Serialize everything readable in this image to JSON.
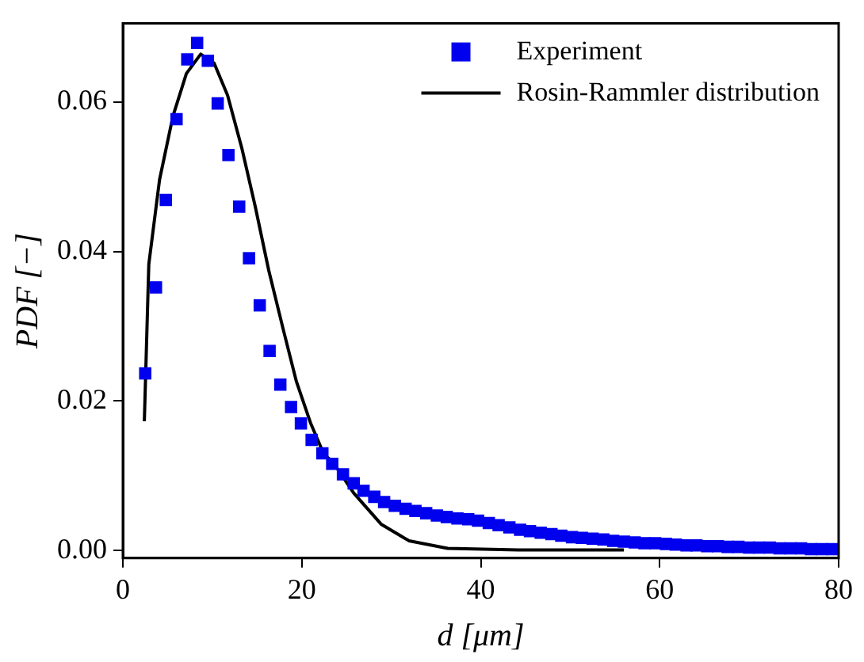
{
  "chart_data": {
    "type": "scatter",
    "xlabel": "d [μm]",
    "ylabel": "PDF [−]",
    "xlim": [
      0,
      80
    ],
    "ylim": [
      -0.001,
      0.0705
    ],
    "xticks": [
      0,
      20,
      40,
      60,
      80
    ],
    "yticks": [
      {
        "value": 0,
        "label": "0.00"
      },
      {
        "value": 0.02,
        "label": "0.02"
      },
      {
        "value": 0.04,
        "label": "0.04"
      },
      {
        "value": 0.06,
        "label": "0.06"
      }
    ],
    "grid": false,
    "legend": "top right",
    "marker": "square",
    "series": [
      {
        "name": "Experiment",
        "color": "#0000ee",
        "x": [
          2.5,
          3.7,
          4.8,
          6.0,
          7.2,
          8.3,
          9.5,
          10.6,
          11.8,
          13.0,
          14.1,
          15.3,
          16.4,
          17.6,
          18.8,
          19.9,
          21.1,
          22.3,
          23.4,
          24.6,
          25.8,
          26.9,
          28.1,
          29.2,
          30.4,
          31.6,
          32.7,
          33.9,
          35.1,
          36.2,
          37.4,
          38.6,
          39.7,
          40.9,
          42.0,
          43.2,
          44.4,
          45.5,
          46.7,
          47.9,
          49.0,
          50.2,
          51.3,
          52.5,
          53.7,
          54.8,
          56.0,
          57.2,
          58.3,
          59.5,
          60.7,
          61.8,
          63.0,
          64.1,
          65.3,
          66.5,
          67.6,
          68.8,
          70.0,
          71.1,
          72.3,
          73.4,
          74.6,
          75.8,
          76.9,
          78.1,
          79.3
        ],
        "values": [
          0.0237,
          0.0352,
          0.0469,
          0.0577,
          0.0657,
          0.0679,
          0.0655,
          0.0598,
          0.0529,
          0.046,
          0.0391,
          0.0328,
          0.0267,
          0.0222,
          0.0192,
          0.017,
          0.0148,
          0.013,
          0.0116,
          0.0102,
          0.009,
          0.008,
          0.0072,
          0.0065,
          0.006,
          0.0056,
          0.0053,
          0.005,
          0.0047,
          0.0045,
          0.0043,
          0.0042,
          0.004,
          0.0037,
          0.0034,
          0.0031,
          0.0028,
          0.0026,
          0.0024,
          0.0022,
          0.002,
          0.0018,
          0.0017,
          0.0016,
          0.0015,
          0.0013,
          0.0012,
          0.0011,
          0.001,
          0.001,
          0.0009,
          0.0008,
          0.0007,
          0.0007,
          0.0006,
          0.0006,
          0.0005,
          0.0005,
          0.0004,
          0.0004,
          0.0004,
          0.0003,
          0.0003,
          0.0003,
          0.0002,
          0.0002,
          0.0002
        ]
      },
      {
        "name": "Rosin-Rammler distribution",
        "type": "line",
        "color": "#000000",
        "marker": "none",
        "line_style": "solid",
        "x": [
          2.4,
          2.9,
          4.1,
          5.6,
          7.1,
          8.7,
          10.2,
          11.7,
          13.3,
          14.8,
          16.3,
          17.9,
          19.4,
          21.0,
          22.5,
          23.4,
          25.8,
          28.9,
          32.0,
          36.3,
          44.2,
          56.0
        ],
        "values": [
          0.0173,
          0.0383,
          0.0496,
          0.0581,
          0.0638,
          0.0664,
          0.0652,
          0.0609,
          0.0538,
          0.046,
          0.0375,
          0.0297,
          0.0226,
          0.017,
          0.0128,
          0.012,
          0.0077,
          0.0035,
          0.0013,
          0.0003,
          0.0001,
          0.0001
        ]
      }
    ]
  }
}
